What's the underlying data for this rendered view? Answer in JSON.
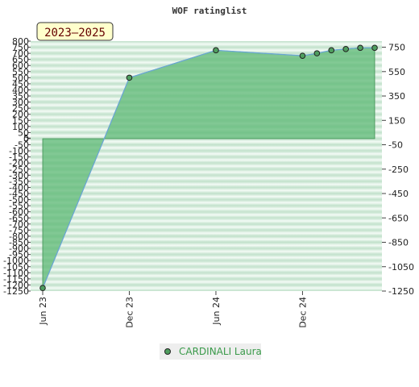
{
  "chart_data": {
    "type": "area",
    "title": "WOF ratinglist",
    "badge": "2023–2025",
    "x_ticks": [
      "Jun 23",
      "Dec 23",
      "Jun 24",
      "Dec 24"
    ],
    "x_tick_months": [
      0,
      6,
      12,
      18
    ],
    "xlim_months": [
      0,
      23.5
    ],
    "ylim": [
      -1250,
      800
    ],
    "left_ticks": [
      800,
      750,
      700,
      650,
      600,
      550,
      500,
      450,
      400,
      350,
      300,
      250,
      200,
      150,
      100,
      50,
      5,
      0,
      -50,
      -100,
      -150,
      -200,
      -250,
      -300,
      -350,
      -400,
      -450,
      -500,
      -550,
      -600,
      -650,
      -700,
      -750,
      -800,
      -850,
      -900,
      -950,
      -1000,
      -1050,
      -1100,
      -1150,
      -1200,
      -1250
    ],
    "left_tick_labels": [
      "800",
      "750",
      "700",
      "650",
      "600",
      "550",
      "500",
      "450",
      "400",
      "350",
      "300",
      "250",
      "200",
      "150",
      "100",
      "50",
      "5",
      "0",
      "-50",
      "-100",
      "-150",
      "-200",
      "-250",
      "-300",
      "-350",
      "-400",
      "-450",
      "-500",
      "-550",
      "-600",
      "-650",
      "-700",
      "-750",
      "-800",
      "-850",
      "-900",
      "-950",
      "-1000",
      "-1050",
      "-1100",
      "-1150",
      "-1200",
      "-1250"
    ],
    "right_ticks": [
      750,
      550,
      350,
      150,
      -50,
      -250,
      -450,
      -650,
      -850,
      -1050,
      -1250
    ],
    "right_tick_labels": [
      "750",
      "550",
      "350",
      "150",
      "-50",
      "-250",
      "-450",
      "-650",
      "-850",
      "-1050",
      "-1250"
    ],
    "series": [
      {
        "name": "CARDINALI Laura",
        "x_months": [
          0,
          6,
          12,
          18,
          19,
          20,
          21,
          22,
          23
        ],
        "values": [
          -1225,
          500,
          725,
          680,
          700,
          725,
          735,
          745,
          745
        ]
      }
    ],
    "legend_position": "bottom-center",
    "grid": true,
    "colors": {
      "area_fill": "#5cb874",
      "line": "#6aa6d6",
      "marker_fill": "#4f9e5f",
      "band_dark": "#bfe0c9",
      "band_light": "#f2faf4",
      "badge_fill": "#ffffcc"
    }
  }
}
